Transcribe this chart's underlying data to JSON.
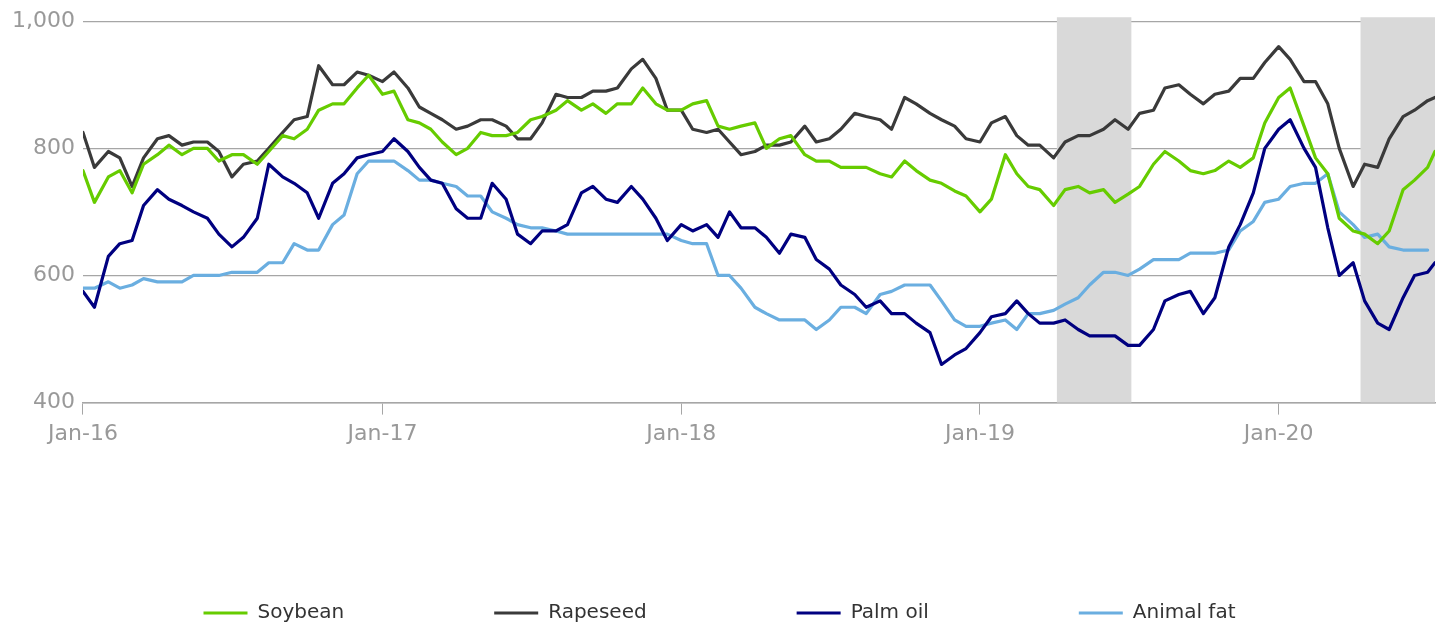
{
  "chart_data": {
    "type": "line",
    "x": [
      "2016-01-01",
      "2016-01-15",
      "2016-02-01",
      "2016-02-15",
      "2016-03-01",
      "2016-03-15",
      "2016-04-01",
      "2016-04-15",
      "2016-05-01",
      "2016-05-15",
      "2016-06-01",
      "2016-06-15",
      "2016-07-01",
      "2016-07-15",
      "2016-08-01",
      "2016-08-15",
      "2016-09-01",
      "2016-09-15",
      "2016-10-01",
      "2016-10-15",
      "2016-11-01",
      "2016-11-15",
      "2016-12-01",
      "2016-12-15",
      "2017-01-01",
      "2017-01-15",
      "2017-02-01",
      "2017-02-15",
      "2017-03-01",
      "2017-03-15",
      "2017-04-01",
      "2017-04-15",
      "2017-05-01",
      "2017-05-15",
      "2017-06-01",
      "2017-06-15",
      "2017-07-01",
      "2017-07-15",
      "2017-08-01",
      "2017-08-15",
      "2017-09-01",
      "2017-09-15",
      "2017-10-01",
      "2017-10-15",
      "2017-11-01",
      "2017-11-15",
      "2017-12-01",
      "2017-12-15",
      "2018-01-01",
      "2018-01-15",
      "2018-02-01",
      "2018-02-15",
      "2018-03-01",
      "2018-03-15",
      "2018-04-01",
      "2018-04-15",
      "2018-05-01",
      "2018-05-15",
      "2018-06-01",
      "2018-06-15",
      "2018-07-01",
      "2018-07-15",
      "2018-08-01",
      "2018-08-15",
      "2018-09-01",
      "2018-09-15",
      "2018-10-01",
      "2018-10-15",
      "2018-11-01",
      "2018-11-15",
      "2018-12-01",
      "2018-12-15",
      "2019-01-01",
      "2019-01-15",
      "2019-02-01",
      "2019-02-15",
      "2019-03-01",
      "2019-03-15",
      "2019-04-01",
      "2019-04-15",
      "2019-05-01",
      "2019-05-15",
      "2019-06-01",
      "2019-06-15",
      "2019-07-01",
      "2019-07-15",
      "2019-08-01",
      "2019-08-15",
      "2019-09-01",
      "2019-09-15",
      "2019-10-01",
      "2019-10-15",
      "2019-11-01",
      "2019-11-15",
      "2019-12-01",
      "2019-12-15",
      "2020-01-01",
      "2020-01-15",
      "2020-02-01",
      "2020-02-15",
      "2020-03-01",
      "2020-03-15",
      "2020-04-01",
      "2020-04-15",
      "2020-05-01",
      "2020-05-15",
      "2020-06-01",
      "2020-06-15",
      "2020-07-01",
      "2020-07-10"
    ],
    "series": [
      {
        "name": "Soybean",
        "color": "#66cc00",
        "values": [
          765,
          715,
          755,
          765,
          730,
          775,
          790,
          805,
          790,
          800,
          800,
          780,
          790,
          790,
          775,
          795,
          820,
          815,
          830,
          860,
          870,
          870,
          895,
          915,
          885,
          890,
          845,
          840,
          830,
          810,
          790,
          800,
          825,
          820,
          820,
          825,
          845,
          850,
          860,
          875,
          860,
          870,
          855,
          870,
          870,
          895,
          870,
          860,
          860,
          870,
          875,
          835,
          830,
          835,
          840,
          800,
          815,
          820,
          790,
          780,
          780,
          770,
          770,
          770,
          760,
          755,
          780,
          765,
          750,
          745,
          733,
          725,
          700,
          720,
          790,
          760,
          740,
          735,
          710,
          735,
          740,
          730,
          735,
          715,
          728,
          740,
          775,
          795,
          780,
          765,
          760,
          765,
          780,
          770,
          785,
          840,
          880,
          895,
          835,
          785,
          760,
          690,
          670,
          665,
          650,
          670,
          735,
          750,
          770,
          795
        ]
      },
      {
        "name": "Rapeseed",
        "color": "#3a3a3a",
        "values": [
          825,
          770,
          795,
          785,
          740,
          785,
          815,
          820,
          805,
          810,
          810,
          795,
          755,
          775,
          780,
          800,
          825,
          845,
          850,
          930,
          900,
          900,
          920,
          915,
          905,
          920,
          895,
          865,
          855,
          845,
          830,
          835,
          845,
          845,
          835,
          815,
          815,
          840,
          885,
          880,
          880,
          890,
          890,
          895,
          925,
          940,
          910,
          860,
          860,
          830,
          825,
          830,
          810,
          790,
          795,
          805,
          805,
          810,
          835,
          810,
          815,
          830,
          855,
          850,
          845,
          830,
          880,
          870,
          855,
          845,
          835,
          815,
          810,
          840,
          850,
          820,
          805,
          805,
          785,
          810,
          820,
          820,
          830,
          845,
          830,
          855,
          860,
          895,
          900,
          885,
          870,
          885,
          890,
          910,
          910,
          935,
          960,
          940,
          905,
          905,
          870,
          800,
          740,
          775,
          770,
          815,
          850,
          860,
          875,
          880
        ]
      },
      {
        "name": "Palm oil",
        "color": "#000080",
        "values": [
          575,
          550,
          630,
          650,
          655,
          710,
          735,
          720,
          710,
          700,
          690,
          665,
          645,
          660,
          690,
          775,
          755,
          745,
          730,
          690,
          745,
          760,
          785,
          790,
          795,
          815,
          795,
          770,
          750,
          745,
          705,
          690,
          690,
          745,
          720,
          665,
          650,
          670,
          670,
          680,
          730,
          740,
          720,
          715,
          740,
          720,
          690,
          655,
          680,
          670,
          680,
          660,
          700,
          675,
          675,
          660,
          635,
          665,
          660,
          625,
          610,
          585,
          570,
          550,
          560,
          540,
          540,
          525,
          510,
          460,
          475,
          485,
          510,
          535,
          540,
          560,
          540,
          525,
          525,
          530,
          515,
          505,
          505,
          505,
          490,
          490,
          515,
          560,
          570,
          575,
          540,
          565,
          645,
          680,
          730,
          800,
          830,
          845,
          800,
          770,
          675,
          600,
          620,
          560,
          525,
          515,
          565,
          600,
          605,
          620
        ]
      },
      {
        "name": "Animal fat",
        "color": "#6aaee0",
        "values": [
          580,
          580,
          590,
          580,
          585,
          595,
          590,
          590,
          590,
          600,
          600,
          600,
          605,
          605,
          605,
          620,
          620,
          650,
          640,
          640,
          680,
          695,
          760,
          780,
          780,
          780,
          765,
          750,
          750,
          745,
          740,
          725,
          725,
          700,
          690,
          680,
          675,
          675,
          670,
          665,
          665,
          665,
          665,
          665,
          665,
          665,
          665,
          665,
          655,
          650,
          650,
          600,
          600,
          580,
          550,
          540,
          530,
          530,
          530,
          515,
          530,
          550,
          550,
          540,
          570,
          575,
          585,
          585,
          585,
          560,
          530,
          520,
          520,
          525,
          530,
          515,
          540,
          540,
          545,
          555,
          565,
          585,
          605,
          605,
          600,
          610,
          625,
          625,
          625,
          635,
          635,
          635,
          640,
          670,
          685,
          715,
          720,
          740,
          745,
          745,
          760,
          700,
          680,
          660,
          665,
          645,
          640,
          640,
          640,
          null
        ]
      }
    ],
    "xlim": [
      "2016-01-01",
      "2020-07-10"
    ],
    "xticks": [
      {
        "value": "2016-01-01",
        "label": "Jan-16"
      },
      {
        "value": "2017-01-01",
        "label": "Jan-17"
      },
      {
        "value": "2018-01-01",
        "label": "Jan-18"
      },
      {
        "value": "2019-01-01",
        "label": "Jan-19"
      },
      {
        "value": "2020-01-01",
        "label": "Jan-20"
      }
    ],
    "ylim": [
      400,
      1000
    ],
    "yticks": [
      400,
      600,
      800,
      {
        "value": 1000,
        "label": "1,000"
      }
    ],
    "bands": [
      {
        "axis": "x",
        "from": "2019-04-05",
        "to": "2019-07-05",
        "color": "#d9d9d9"
      },
      {
        "axis": "x",
        "from": "2020-04-10",
        "to": "2020-07-10",
        "color": "#d9d9d9"
      }
    ],
    "grid": "y",
    "legend": "bottom",
    "marker": "none",
    "line_style": "solid"
  }
}
